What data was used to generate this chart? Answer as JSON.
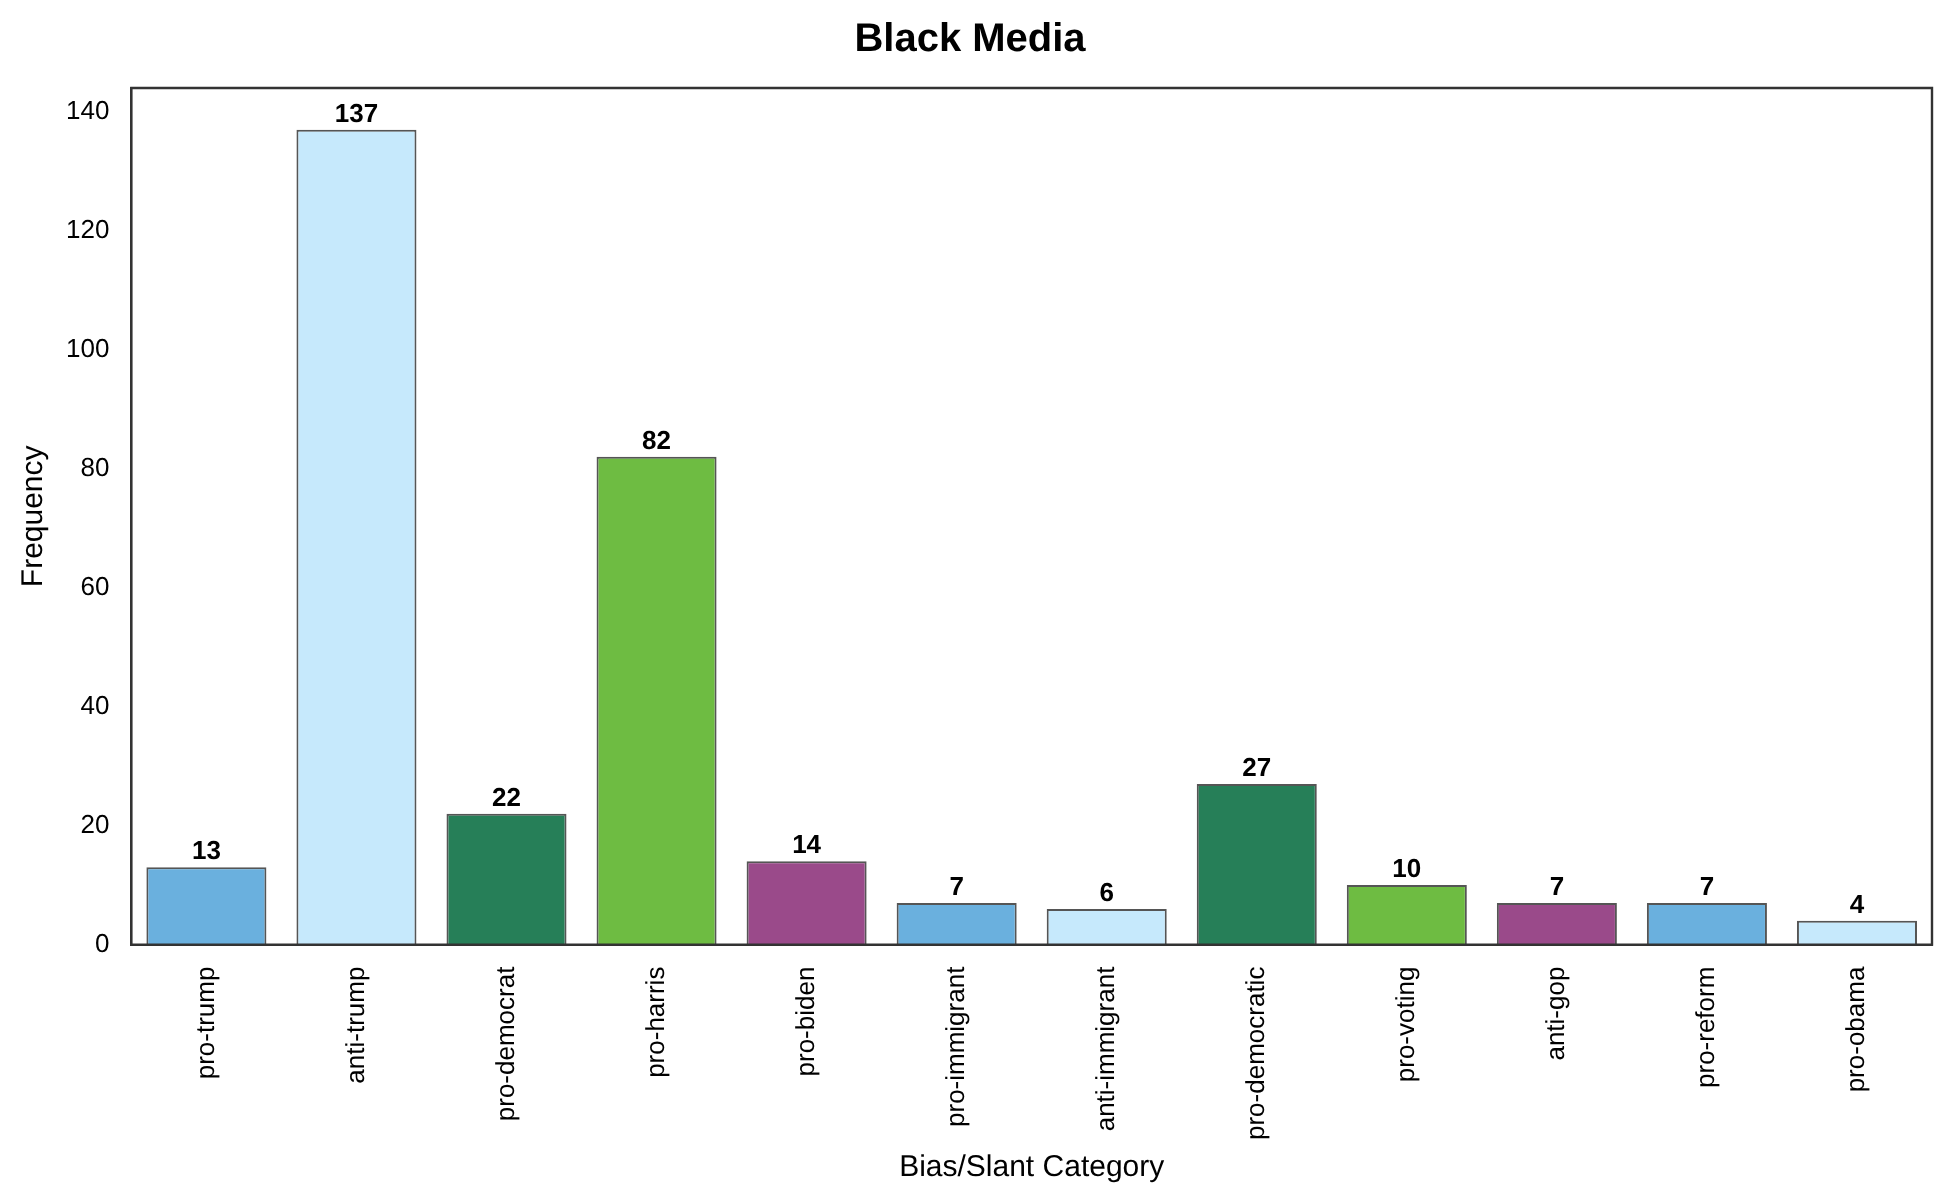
{
  "chart_data": {
    "type": "bar",
    "title": "Black Media",
    "xlabel": "Bias/Slant Category",
    "ylabel": "Frequency",
    "categories": [
      "pro-trump",
      "anti-trump",
      "pro-democrat",
      "pro-harris",
      "pro-biden",
      "pro-immigrant",
      "anti-immigrant",
      "pro-democratic",
      "pro-voting",
      "anti-gop",
      "pro-reform",
      "pro-obama"
    ],
    "values": [
      13,
      137,
      22,
      82,
      14,
      7,
      6,
      27,
      10,
      7,
      7,
      4
    ],
    "colors": [
      "#6ab0de",
      "#c6e9fc",
      "#267f58",
      "#6ebc42",
      "#9a4a8a",
      "#6ab0de",
      "#c6e9fc",
      "#267f58",
      "#6ebc42",
      "#9a4a8a",
      "#6ab0de",
      "#c6e9fc"
    ],
    "ylim": [
      0,
      144
    ],
    "yticks": [
      0,
      20,
      40,
      60,
      80,
      100,
      120,
      140
    ],
    "grid": false,
    "legend": false,
    "data_labels": true
  }
}
